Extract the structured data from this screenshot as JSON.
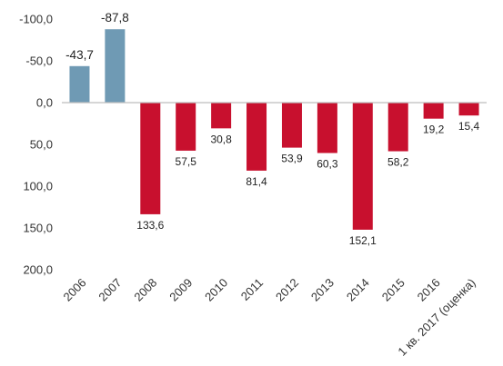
{
  "chart_data": {
    "type": "bar",
    "categories": [
      "2006",
      "2007",
      "2008",
      "2009",
      "2010",
      "2011",
      "2012",
      "2013",
      "2014",
      "2015",
      "2016",
      "1 кв. 2017  (оценка)"
    ],
    "values": [
      -43.7,
      -87.8,
      133.6,
      57.5,
      30.8,
      81.4,
      53.9,
      60.3,
      152.1,
      58.2,
      19.2,
      15.4
    ],
    "value_labels": [
      "-43,7",
      "-87,8",
      "133,6",
      "57,5",
      "30,8",
      "81,4",
      "53,9",
      "60,3",
      "152,1",
      "58,2",
      "19,2",
      "15,4"
    ],
    "ylim": [
      -100,
      200
    ],
    "y_inverted": true,
    "y_ticks": [
      -100,
      -50,
      0,
      50,
      100,
      150,
      200
    ],
    "y_tick_labels": [
      "-100,0",
      "-50,0",
      "0,0",
      "50,0",
      "100,0",
      "150,0",
      "200,0"
    ],
    "title": "",
    "xlabel": "",
    "ylabel": "",
    "grid": false,
    "legend": "none",
    "colors": {
      "negative": "#6f9ab4",
      "positive": "#c8102e",
      "axis": "#bdbdbd"
    }
  }
}
